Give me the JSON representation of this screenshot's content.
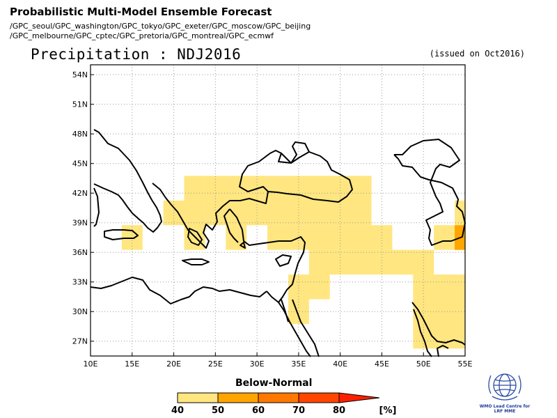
{
  "header": {
    "title": "Probabilistic Multi-Model Ensemble Forecast",
    "models_line1": "/GPC_seoul/GPC_washington/GPC_tokyo/GPC_exeter/GPC_moscow/GPC_beijing",
    "models_line2": "/GPC_melbourne/GPC_cptec/GPC_pretoria/GPC_montreal/GPC_ecmwf",
    "variable": "Precipitation : NDJ2016",
    "issued": "(issued on Oct2016)"
  },
  "map": {
    "lon_range": [
      10,
      55
    ],
    "lat_range": [
      25.5,
      55
    ],
    "lon_ticks": [
      "10E",
      "15E",
      "20E",
      "25E",
      "30E",
      "35E",
      "40E",
      "45E",
      "50E",
      "55E"
    ],
    "lat_ticks": [
      "27N",
      "30N",
      "33N",
      "36N",
      "39N",
      "42N",
      "45N",
      "48N",
      "51N",
      "54N"
    ],
    "grid": "dotted",
    "category": "Below-Normal",
    "cells_40_50": [
      [
        13.75,
        36.25,
        16.25,
        38.75
      ],
      [
        18.75,
        38.75,
        21.25,
        41.25
      ],
      [
        21.25,
        36.25,
        23.75,
        43.75
      ],
      [
        23.75,
        38.75,
        43.75,
        43.75
      ],
      [
        26.25,
        36.25,
        28.75,
        38.75
      ],
      [
        31.25,
        36.25,
        46.25,
        38.75
      ],
      [
        36.25,
        33.75,
        51.25,
        36.25
      ],
      [
        33.75,
        31.25,
        38.75,
        33.75
      ],
      [
        33.75,
        28.75,
        36.25,
        31.25
      ],
      [
        51.25,
        36.25,
        55.0,
        38.75
      ],
      [
        53.75,
        38.75,
        55.0,
        41.25
      ],
      [
        48.75,
        26.25,
        55.0,
        33.75
      ]
    ],
    "cells_50_60": [
      [
        53.75,
        36.25,
        55.0,
        38.75
      ]
    ]
  },
  "legend": {
    "title": "Below-Normal",
    "labels": [
      "40",
      "50",
      "60",
      "70",
      "80"
    ],
    "unit": "[%]",
    "colors": [
      "#ffe680",
      "#ffa500",
      "#ff7800",
      "#ff4500",
      "#ff2000"
    ]
  },
  "logo": {
    "org": "WMO Lead Centre for",
    "program": "LRF MME"
  }
}
